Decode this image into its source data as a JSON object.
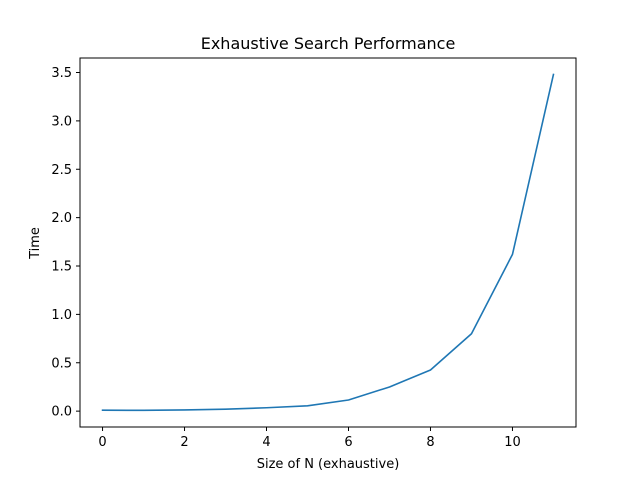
{
  "chart_data": {
    "type": "line",
    "title": "Exhaustive Search Performance",
    "xlabel": "Size of N (exhaustive)",
    "ylabel": "Time",
    "x": [
      0,
      1,
      2,
      3,
      4,
      5,
      6,
      7,
      8,
      9,
      10,
      11
    ],
    "series": [
      {
        "values": [
          0.01,
          0.008,
          0.012,
          0.02,
          0.035,
          0.055,
          0.115,
          0.25,
          0.425,
          0.8,
          1.62,
          3.48
        ],
        "color": "#1f77b4"
      }
    ],
    "xlim": [
      -0.55,
      11.55
    ],
    "ylim": [
      -0.164,
      3.65
    ],
    "xticks": [
      0,
      2,
      4,
      6,
      8,
      10
    ],
    "xtick_labels": [
      "0",
      "2",
      "4",
      "6",
      "8",
      "10"
    ],
    "yticks": [
      0.0,
      0.5,
      1.0,
      1.5,
      2.0,
      2.5,
      3.0,
      3.5
    ],
    "ytick_labels": [
      "0.0",
      "0.5",
      "1.0",
      "1.5",
      "2.0",
      "2.5",
      "3.0",
      "3.5"
    ],
    "grid": false,
    "legend": "none"
  }
}
